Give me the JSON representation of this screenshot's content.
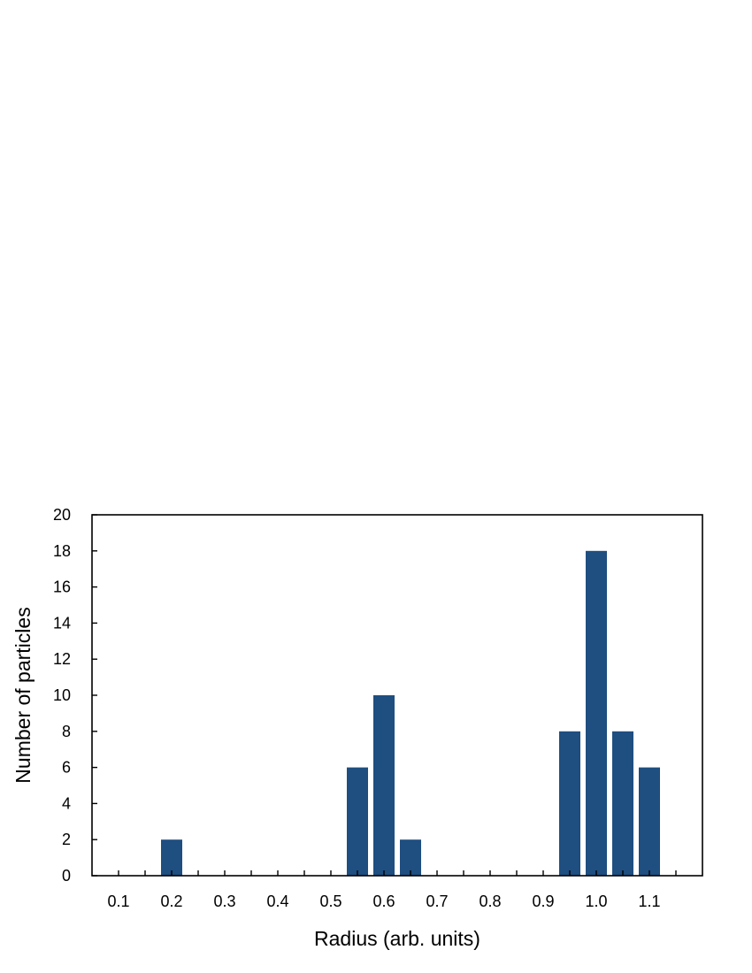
{
  "chart_data": {
    "type": "bar",
    "xlabel": "Radius (arb. units)",
    "ylabel": "Number of  particles",
    "ylim": [
      0,
      20
    ],
    "xlim": [
      0.05,
      1.2
    ],
    "yticks": [
      0,
      2,
      4,
      6,
      8,
      10,
      12,
      14,
      16,
      18,
      20
    ],
    "xticks": [
      "0.1",
      "0.2",
      "0.3",
      "0.4",
      "0.5",
      "0.6",
      "0.7",
      "0.8",
      "0.9",
      "1.0",
      "1.1"
    ],
    "bar_width": 0.04,
    "bars": [
      {
        "x": 0.2,
        "value": 2
      },
      {
        "x": 0.55,
        "value": 6
      },
      {
        "x": 0.6,
        "value": 10
      },
      {
        "x": 0.65,
        "value": 2
      },
      {
        "x": 0.95,
        "value": 8
      },
      {
        "x": 1.0,
        "value": 18
      },
      {
        "x": 1.05,
        "value": 8
      },
      {
        "x": 1.1,
        "value": 6
      }
    ],
    "bar_color": "#1f4e80",
    "grid": false,
    "legend": "none"
  }
}
